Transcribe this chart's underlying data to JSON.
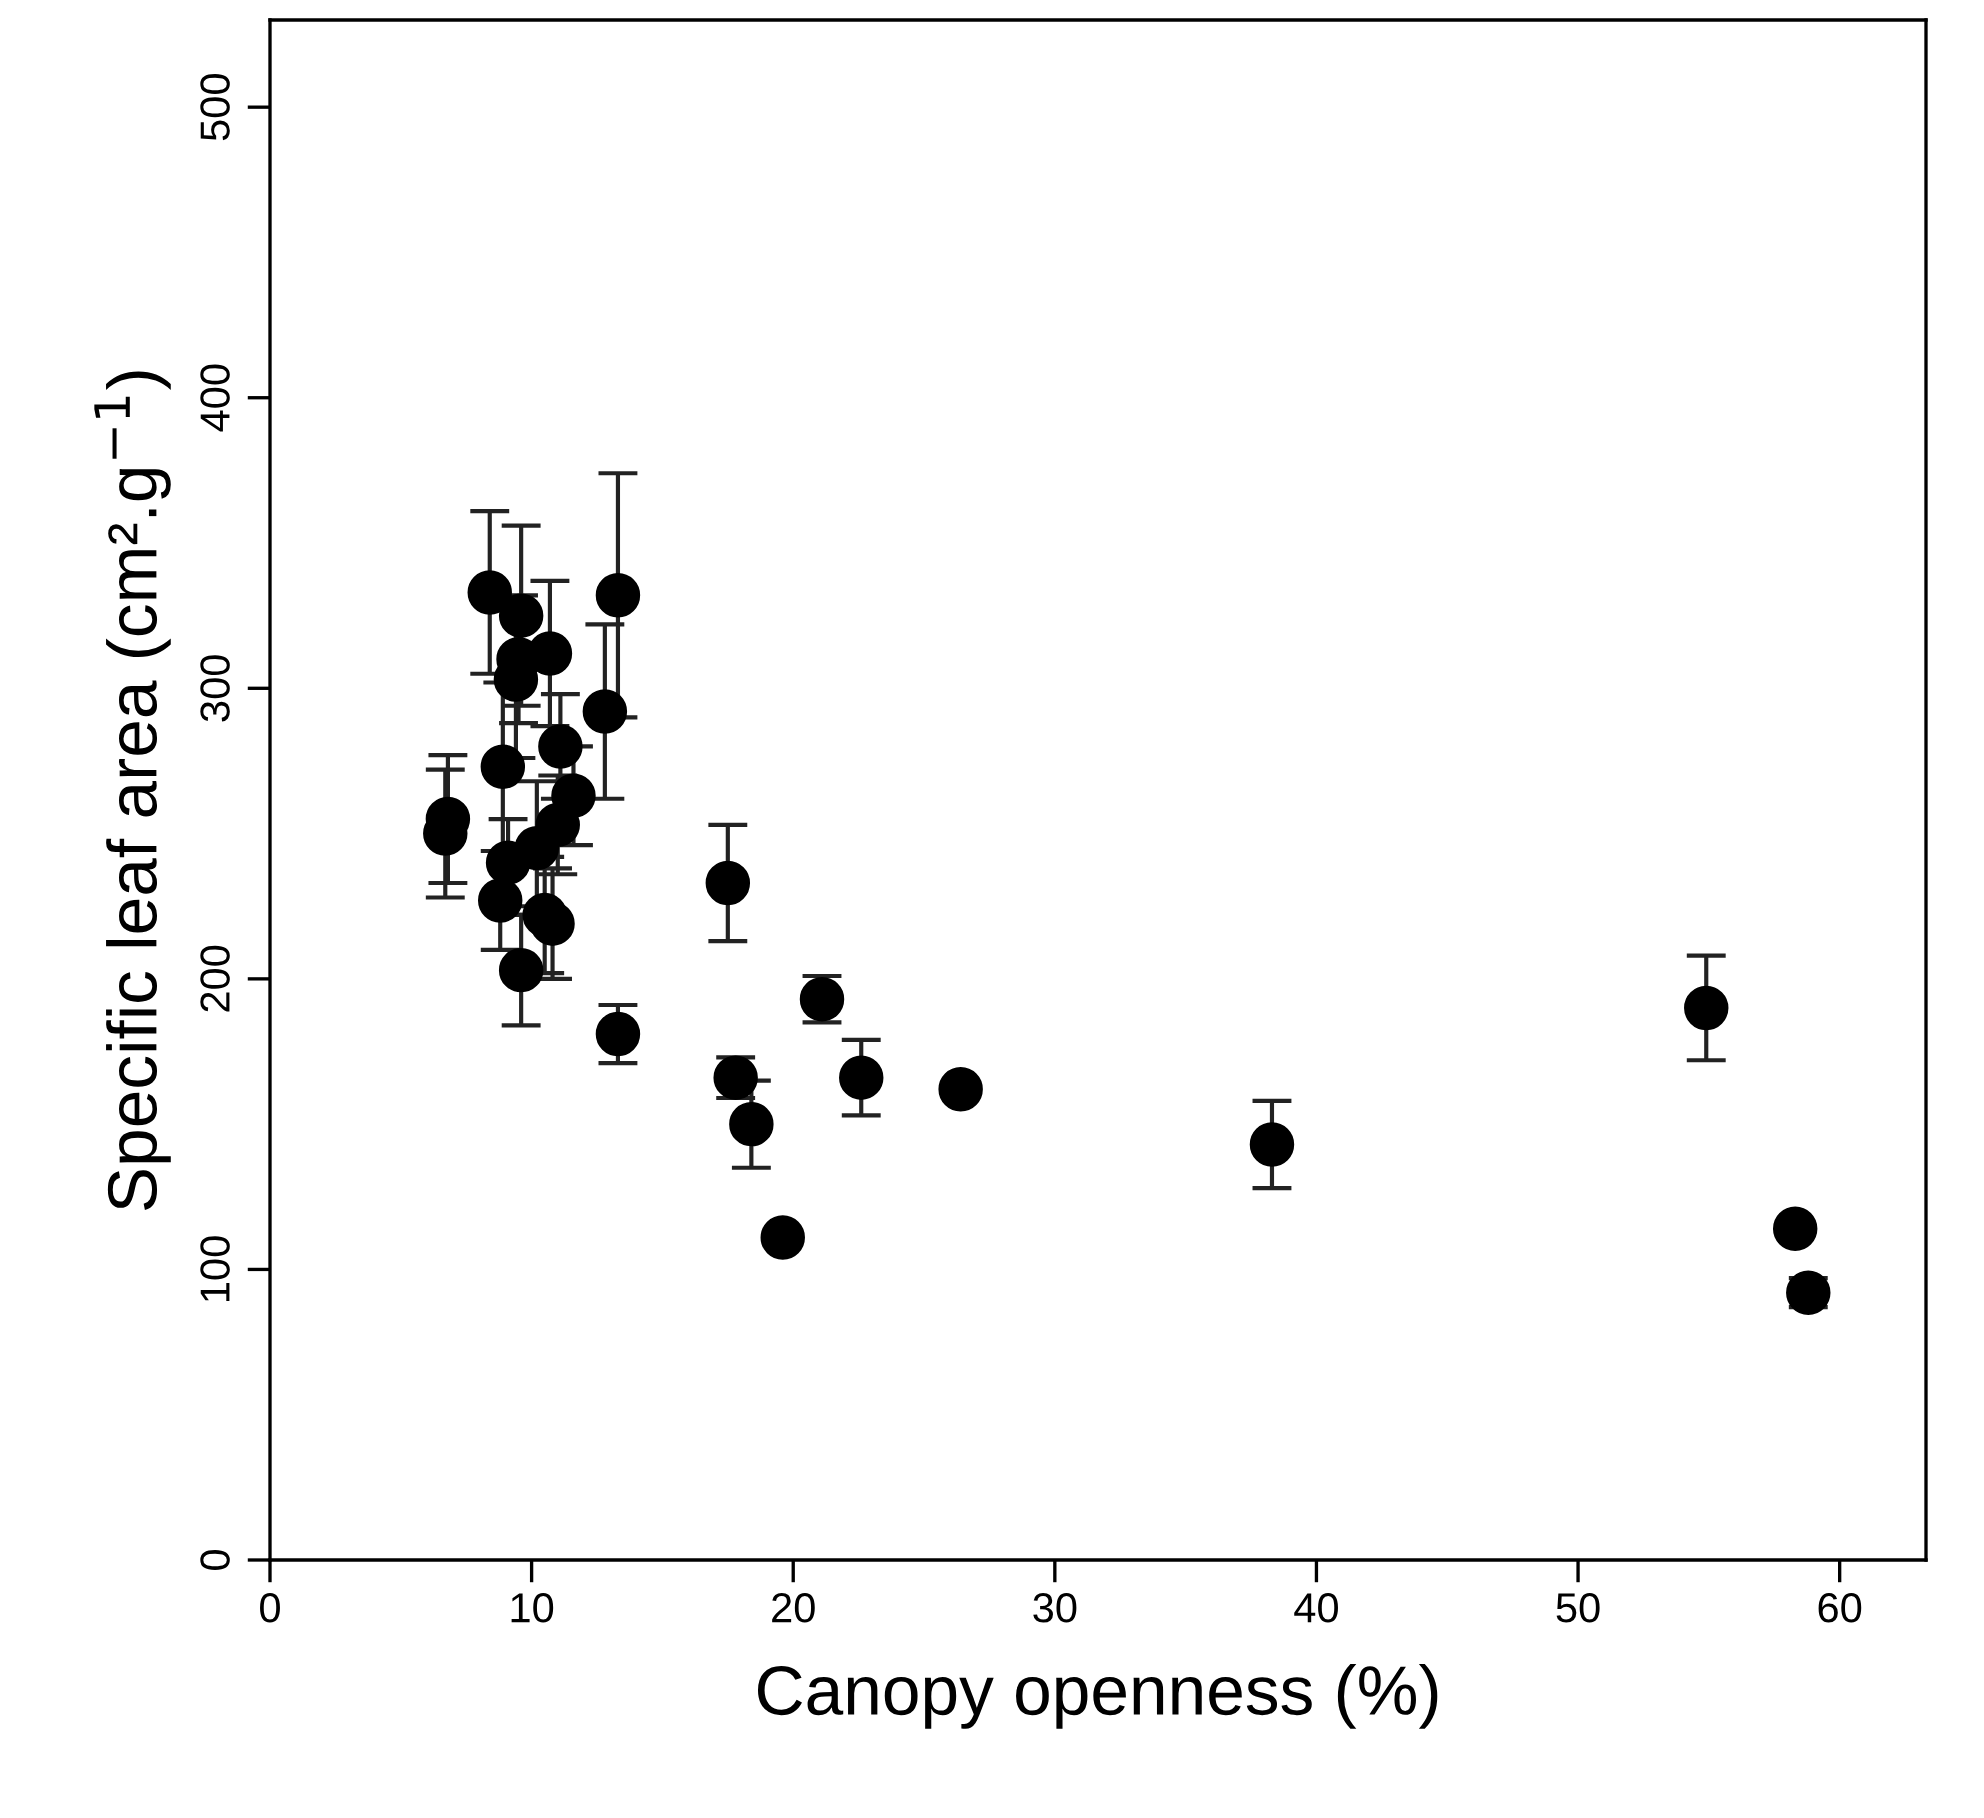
{
  "chart_data": {
    "type": "scatter",
    "xlabel": "Canopy openness (%)",
    "ylabel": "Specific leaf area (cm².g$^{−1}$)",
    "xlim": [
      0,
      63.3
    ],
    "ylim": [
      0,
      530
    ],
    "xticks": [
      0,
      10,
      20,
      30,
      40,
      50,
      60
    ],
    "yticks": [
      0,
      100,
      200,
      300,
      400,
      500
    ],
    "grid": false,
    "marker": "circle",
    "series": [
      {
        "color": "#000000",
        "x": [
          6.7,
          6.8,
          8.4,
          8.8,
          8.9,
          9.1,
          9.4,
          9.5,
          9.6,
          9.6,
          10.2,
          10.5,
          10.8,
          10.7,
          11.0,
          11.1,
          11.6,
          12.8,
          13.3,
          13.3,
          17.5,
          17.8,
          18.4,
          19.6,
          21.1,
          22.6,
          26.4,
          38.3,
          54.9,
          58.3,
          58.8
        ],
        "values": [
          250,
          255,
          333,
          227,
          273,
          240,
          303,
          310,
          325,
          203,
          245,
          222,
          219,
          312,
          253,
          280,
          263,
          292,
          332,
          181,
          233,
          166,
          150,
          111,
          193,
          166,
          162,
          143,
          190,
          114,
          92
        ],
        "errors": [
          22,
          22,
          28,
          17,
          29,
          15,
          27,
          22,
          31,
          19,
          23,
          20,
          19,
          25,
          17,
          18,
          17,
          30,
          42,
          10,
          20,
          7,
          15,
          null,
          8,
          13,
          null,
          15,
          18,
          null,
          5
        ]
      }
    ]
  }
}
